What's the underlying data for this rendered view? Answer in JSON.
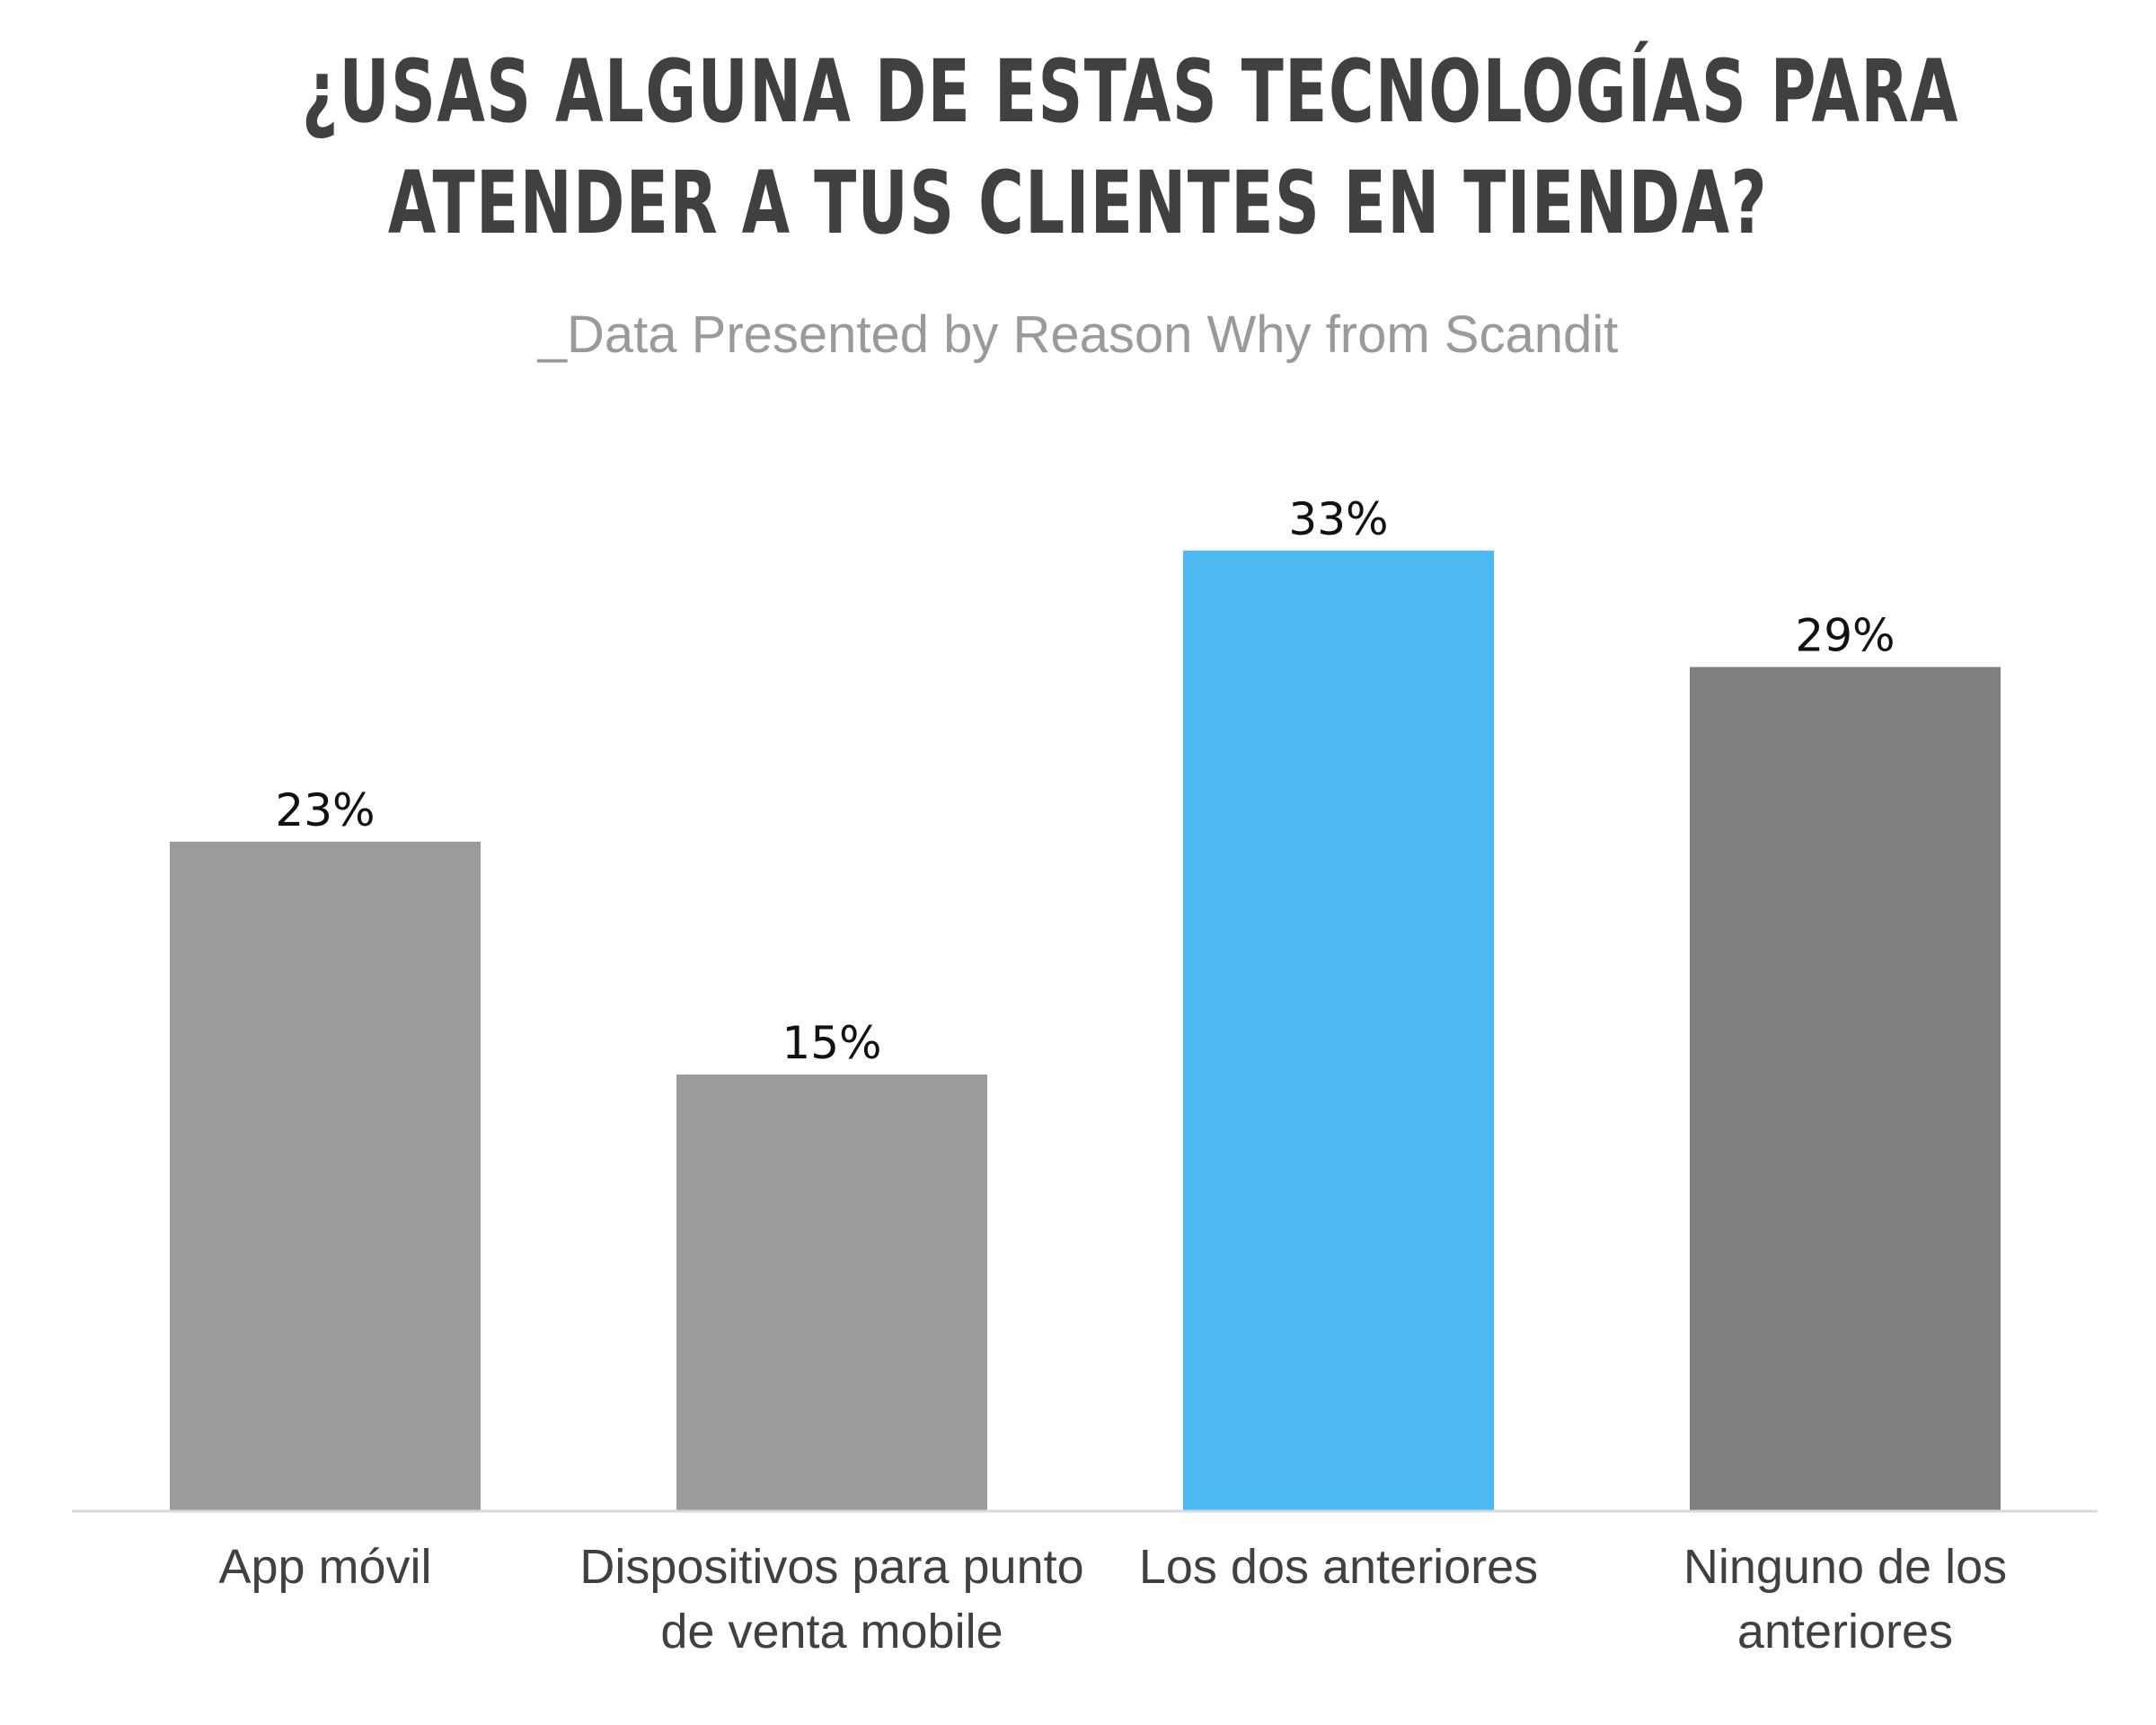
{
  "header": {
    "title_lines": [
      "¿USAS ALGUNA DE ESTAS TECNOLOGÍAS PARA",
      "ATENDER A TUS CLIENTES EN TIENDA?"
    ],
    "subtitle": "_Data Presented by Reason Why from Scandit"
  },
  "chart_data": {
    "type": "bar",
    "title": "¿USAS ALGUNA DE ESTAS TECNOLOGÍAS PARA ATENDER A TUS CLIENTES EN TIENDA?",
    "subtitle": "_Data Presented by Reason Why from Scandit",
    "categories": [
      [
        "App móvil"
      ],
      [
        "Dispositivos para punto",
        "de venta mobile"
      ],
      [
        "Los dos anteriores"
      ],
      [
        "Ninguno de los",
        "anteriores"
      ]
    ],
    "values": [
      23,
      15,
      33,
      29
    ],
    "value_labels": [
      "23%",
      "15%",
      "33%",
      "29%"
    ],
    "unit": "%",
    "colors": [
      "#9b9b9b",
      "#9b9b9b",
      "#4db9f2",
      "#7f7f7f"
    ],
    "axis_color": "#d9d9d9",
    "xlabel": "",
    "ylabel": "",
    "grid": false,
    "legend": "none"
  }
}
